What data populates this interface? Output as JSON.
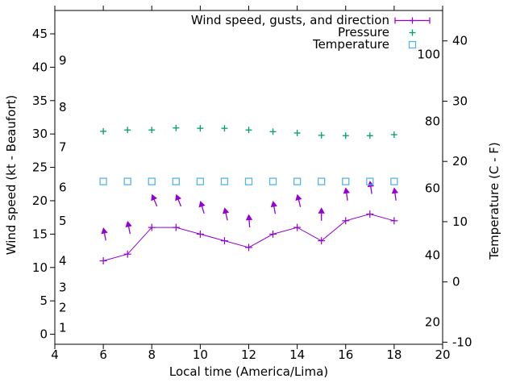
{
  "chart_data": {
    "type": "line",
    "title": "",
    "xlabel": "Local time (America/Lima)",
    "ylabel_left": "Wind speed (kt - Beaufort)",
    "ylabel_right": "Temperature (C - F)",
    "grid": false,
    "legend_position": "top-right",
    "x_axis": {
      "range": [
        4,
        20
      ],
      "ticks": [
        4,
        6,
        8,
        10,
        12,
        14,
        16,
        18,
        20
      ]
    },
    "y_axis_wind_kt": {
      "range": [
        -1.5,
        48.5
      ],
      "ticks": [
        0,
        5,
        10,
        15,
        20,
        25,
        30,
        35,
        40,
        45
      ]
    },
    "beaufort_scale": [
      {
        "label": "1",
        "kt": 1
      },
      {
        "label": "2",
        "kt": 4
      },
      {
        "label": "3",
        "kt": 7
      },
      {
        "label": "4",
        "kt": 11
      },
      {
        "label": "5",
        "kt": 17
      },
      {
        "label": "6",
        "kt": 22
      },
      {
        "label": "7",
        "kt": 28
      },
      {
        "label": "8",
        "kt": 34
      },
      {
        "label": "9",
        "kt": 41
      }
    ],
    "y_axis_temp_c": {
      "range": [
        -10.35,
        45.05
      ],
      "ticks": [
        -10,
        0,
        10,
        20,
        30,
        40
      ]
    },
    "y_axis_temp_f_ticks": [
      20,
      40,
      60,
      80,
      100
    ],
    "hours": [
      6,
      7,
      8,
      9,
      10,
      11,
      12,
      13,
      14,
      15,
      16,
      17,
      18
    ],
    "series": {
      "wind": {
        "label": "Wind speed, gusts, and direction",
        "color": "#9400d3",
        "speed_kt": [
          11,
          12,
          16,
          16,
          15,
          14,
          13,
          15,
          16,
          14,
          17,
          18,
          17
        ],
        "gust_kt": [
          16,
          17,
          21,
          21,
          20,
          19,
          18,
          20,
          21,
          19,
          22,
          23,
          22
        ],
        "gust_direction_deg": [
          -11,
          -11,
          -23,
          -22,
          -17,
          -13,
          -4,
          -10,
          -14,
          0,
          -8,
          -8,
          -8
        ]
      },
      "pressure": {
        "label": "Pressure",
        "color": "#009e73",
        "values_on_left_axis": [
          30.4,
          30.6,
          30.6,
          30.9,
          30.85,
          30.85,
          30.6,
          30.35,
          30.15,
          29.8,
          29.75,
          29.75,
          29.9
        ]
      },
      "temperature": {
        "label": "Temperature",
        "color": "#56b4e9",
        "values_f": [
          62,
          62,
          62,
          62,
          62,
          62,
          62,
          62,
          62,
          62,
          62,
          62,
          62
        ]
      }
    },
    "axis_color": "#000000"
  }
}
